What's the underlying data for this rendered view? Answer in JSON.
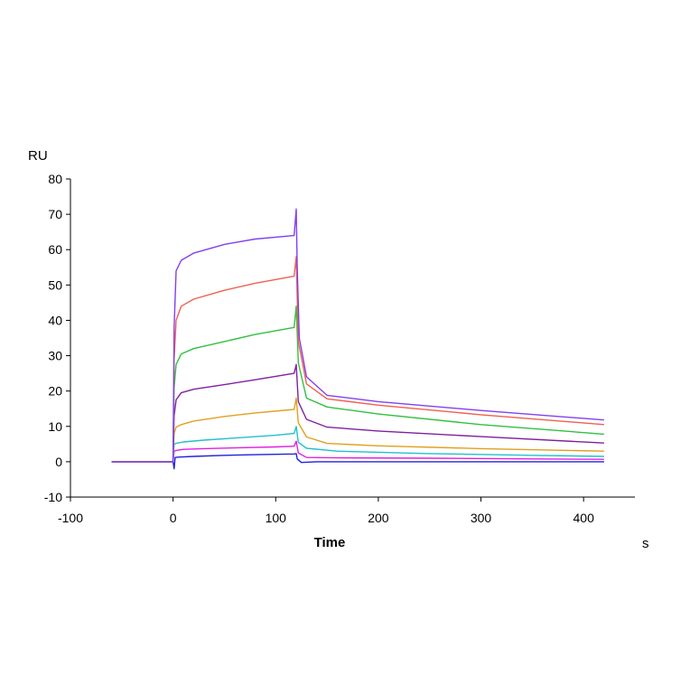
{
  "chart_data": {
    "type": "line",
    "ylabel": "RU",
    "xlabel": "Time",
    "xunit": "s",
    "xlim": [
      -100,
      450
    ],
    "ylim": [
      -10,
      80
    ],
    "xticks": [
      -100,
      0,
      100,
      200,
      300,
      400
    ],
    "yticks": [
      -10,
      0,
      10,
      20,
      30,
      40,
      50,
      60,
      70,
      80
    ],
    "grid": false,
    "legend": "none",
    "series": [
      {
        "color": "#2020e0",
        "points": [
          [
            -60,
            0
          ],
          [
            -10,
            0
          ],
          [
            0,
            0
          ],
          [
            1,
            -2
          ],
          [
            2,
            1.2
          ],
          [
            5,
            1.3
          ],
          [
            20,
            1.5
          ],
          [
            50,
            1.8
          ],
          [
            80,
            2
          ],
          [
            118,
            2.2
          ],
          [
            120,
            2.3
          ],
          [
            121,
            0.8
          ],
          [
            125,
            -0.2
          ],
          [
            140,
            0
          ],
          [
            200,
            0
          ],
          [
            300,
            0
          ],
          [
            400,
            0
          ],
          [
            420,
            0
          ]
        ]
      },
      {
        "color": "#e020e0",
        "points": [
          [
            -60,
            0
          ],
          [
            -5,
            0
          ],
          [
            0,
            0
          ],
          [
            1,
            3
          ],
          [
            3,
            3.2
          ],
          [
            10,
            3.5
          ],
          [
            30,
            3.7
          ],
          [
            60,
            3.9
          ],
          [
            100,
            4.2
          ],
          [
            118,
            4.4
          ],
          [
            120,
            5.8
          ],
          [
            122,
            2.5
          ],
          [
            130,
            1.2
          ],
          [
            160,
            1.1
          ],
          [
            250,
            1
          ],
          [
            350,
            0.8
          ],
          [
            420,
            0.7
          ]
        ]
      },
      {
        "color": "#20c0d0",
        "points": [
          [
            -60,
            0
          ],
          [
            -5,
            0
          ],
          [
            0,
            0
          ],
          [
            1,
            5
          ],
          [
            3,
            5.2
          ],
          [
            10,
            5.6
          ],
          [
            30,
            6.1
          ],
          [
            60,
            6.7
          ],
          [
            100,
            7.5
          ],
          [
            118,
            8
          ],
          [
            120,
            10
          ],
          [
            122,
            5.5
          ],
          [
            130,
            3.8
          ],
          [
            160,
            3
          ],
          [
            250,
            2.3
          ],
          [
            350,
            1.8
          ],
          [
            420,
            1.5
          ]
        ]
      },
      {
        "color": "#e0a020",
        "points": [
          [
            -60,
            0
          ],
          [
            -5,
            0
          ],
          [
            0,
            0
          ],
          [
            1,
            8
          ],
          [
            3,
            9.8
          ],
          [
            8,
            10.5
          ],
          [
            20,
            11.5
          ],
          [
            50,
            12.8
          ],
          [
            80,
            13.8
          ],
          [
            118,
            14.8
          ],
          [
            120,
            18
          ],
          [
            122,
            11
          ],
          [
            130,
            7
          ],
          [
            150,
            5.2
          ],
          [
            200,
            4.5
          ],
          [
            300,
            3.7
          ],
          [
            420,
            3
          ]
        ]
      },
      {
        "color": "#8020a0",
        "points": [
          [
            -60,
            0
          ],
          [
            -5,
            0
          ],
          [
            0,
            0
          ],
          [
            1,
            13
          ],
          [
            3,
            17.5
          ],
          [
            8,
            19.5
          ],
          [
            20,
            20.5
          ],
          [
            50,
            21.8
          ],
          [
            80,
            23.2
          ],
          [
            118,
            25
          ],
          [
            120,
            27.5
          ],
          [
            122,
            17
          ],
          [
            130,
            12
          ],
          [
            150,
            9.8
          ],
          [
            200,
            8.7
          ],
          [
            300,
            7.1
          ],
          [
            420,
            5.3
          ]
        ]
      },
      {
        "color": "#30c040",
        "points": [
          [
            -60,
            0
          ],
          [
            -5,
            0
          ],
          [
            0,
            0
          ],
          [
            1,
            21
          ],
          [
            3,
            27.5
          ],
          [
            8,
            30.5
          ],
          [
            20,
            32
          ],
          [
            50,
            34
          ],
          [
            80,
            36
          ],
          [
            118,
            38
          ],
          [
            120,
            44
          ],
          [
            122,
            28
          ],
          [
            130,
            18
          ],
          [
            150,
            15.5
          ],
          [
            200,
            13.5
          ],
          [
            300,
            10.5
          ],
          [
            420,
            7.8
          ]
        ]
      },
      {
        "color": "#f06050",
        "points": [
          [
            -60,
            0
          ],
          [
            -5,
            0
          ],
          [
            0,
            0
          ],
          [
            1,
            29
          ],
          [
            3,
            40
          ],
          [
            8,
            44
          ],
          [
            20,
            46
          ],
          [
            50,
            48.5
          ],
          [
            80,
            50.5
          ],
          [
            118,
            52.5
          ],
          [
            120,
            58
          ],
          [
            122,
            34
          ],
          [
            130,
            22
          ],
          [
            150,
            17.8
          ],
          [
            200,
            16
          ],
          [
            300,
            13.3
          ],
          [
            420,
            10.5
          ]
        ]
      },
      {
        "color": "#8040f0",
        "points": [
          [
            -60,
            0
          ],
          [
            -5,
            0
          ],
          [
            0,
            0
          ],
          [
            1,
            38
          ],
          [
            3,
            54
          ],
          [
            8,
            57
          ],
          [
            20,
            59
          ],
          [
            50,
            61.5
          ],
          [
            80,
            63
          ],
          [
            118,
            64
          ],
          [
            120,
            71.5
          ],
          [
            121,
            55
          ],
          [
            123,
            35
          ],
          [
            130,
            24
          ],
          [
            150,
            18.8
          ],
          [
            200,
            17
          ],
          [
            300,
            14.5
          ],
          [
            420,
            11.8
          ]
        ]
      }
    ]
  }
}
